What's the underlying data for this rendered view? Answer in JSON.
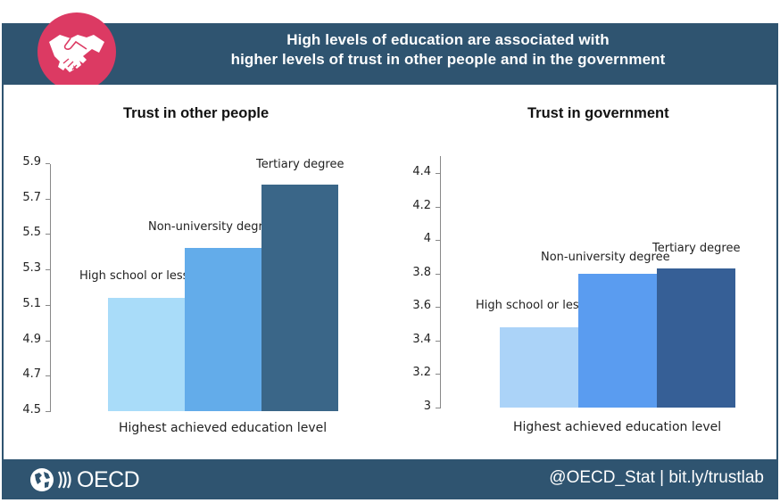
{
  "header": {
    "title_line1": "High levels of education are associated with",
    "title_line2": "higher levels of trust in other people and in the government",
    "icon": "handshake-icon",
    "badge_color": "#dc3a63",
    "banner_color": "#2f5470"
  },
  "footer": {
    "logo_text": "OECD",
    "credit": "@OECD_Stat | bit.ly/trustlab"
  },
  "chart_data": [
    {
      "type": "bar",
      "title": "Trust in other people",
      "categories": [
        "High school or less",
        "Non-university degree",
        "Tertiary degree"
      ],
      "values": [
        5.14,
        5.42,
        5.78
      ],
      "colors": [
        "#a9dcf9",
        "#63acea",
        "#3a6688"
      ],
      "xlabel": "Highest achieved education level",
      "ylabel": "",
      "ylim": [
        4.5,
        5.9
      ],
      "yticks": [
        "5.9",
        "5.7",
        "5.5",
        "5.3",
        "5.1",
        "4.9",
        "4.7",
        "4.5"
      ],
      "grid": false,
      "legend": "none (data labels above bars)"
    },
    {
      "type": "bar",
      "title": "Trust in government",
      "categories": [
        "High school or less",
        "Non-university degree",
        "Tertiary degree"
      ],
      "values": [
        3.48,
        3.8,
        3.83
      ],
      "colors": [
        "#abd3f8",
        "#5a9cf0",
        "#365f96"
      ],
      "xlabel": "Highest achieved education level",
      "ylabel": "",
      "ylim": [
        3,
        4.5
      ],
      "yticks": [
        "4.4",
        "4.2",
        "4",
        "3.8",
        "3.6",
        "3.4",
        "3.2",
        "3"
      ],
      "grid": false,
      "legend": "none (data labels above bars)"
    }
  ]
}
